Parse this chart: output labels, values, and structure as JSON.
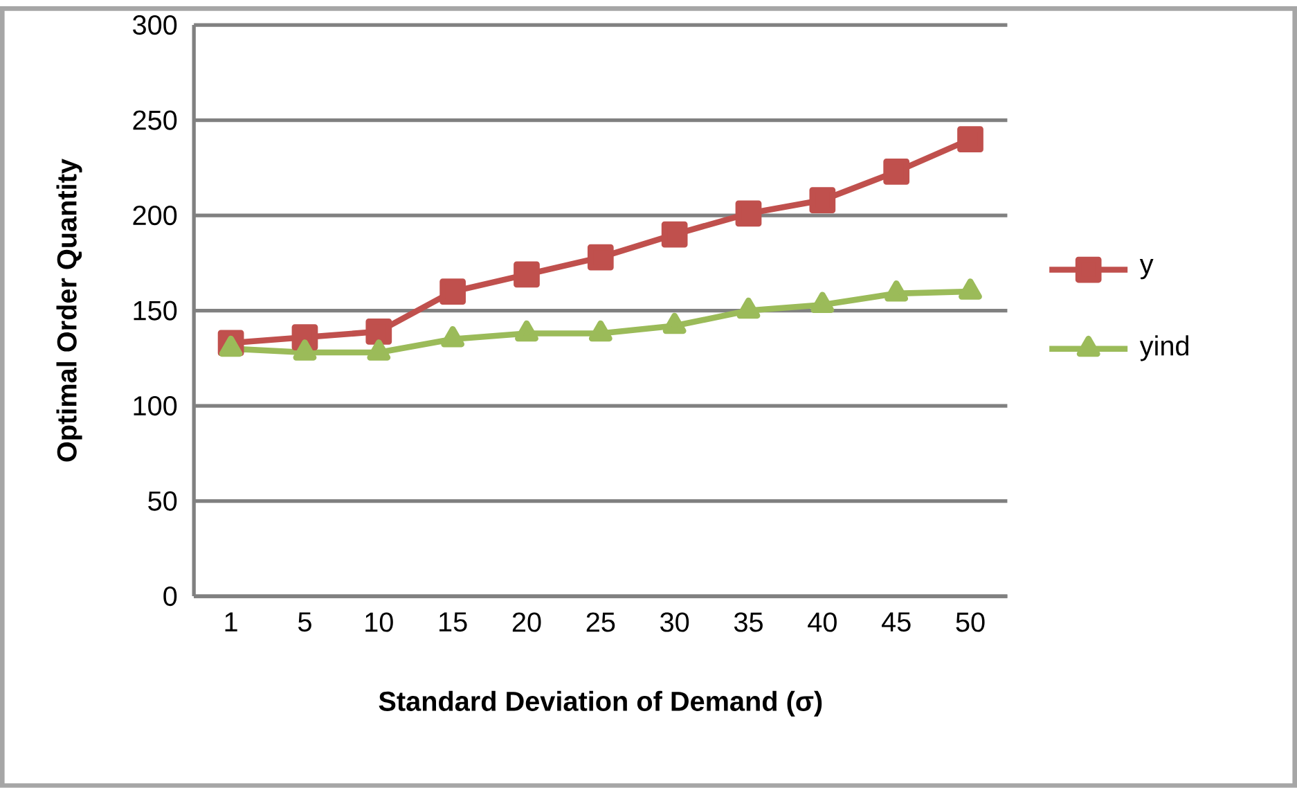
{
  "chart_data": {
    "type": "line",
    "xlabel": "Standard Deviation of Demand (σ)",
    "ylabel": "Optimal Order Quantity",
    "categories": [
      "1",
      "5",
      "10",
      "15",
      "20",
      "25",
      "30",
      "35",
      "40",
      "45",
      "50"
    ],
    "series": [
      {
        "name": "y",
        "color": "#c0504d",
        "marker": "square",
        "values": [
          133,
          136,
          139,
          160,
          169,
          178,
          190,
          201,
          208,
          223,
          240
        ]
      },
      {
        "name": "yind",
        "color": "#9bbb59",
        "marker": "triangle",
        "values": [
          130,
          128,
          128,
          135,
          138,
          138,
          142,
          150,
          153,
          159,
          160
        ]
      }
    ],
    "ylim": [
      0,
      300
    ],
    "yticks": [
      0,
      50,
      100,
      150,
      200,
      250,
      300
    ],
    "grid": "y",
    "legend": "right"
  }
}
